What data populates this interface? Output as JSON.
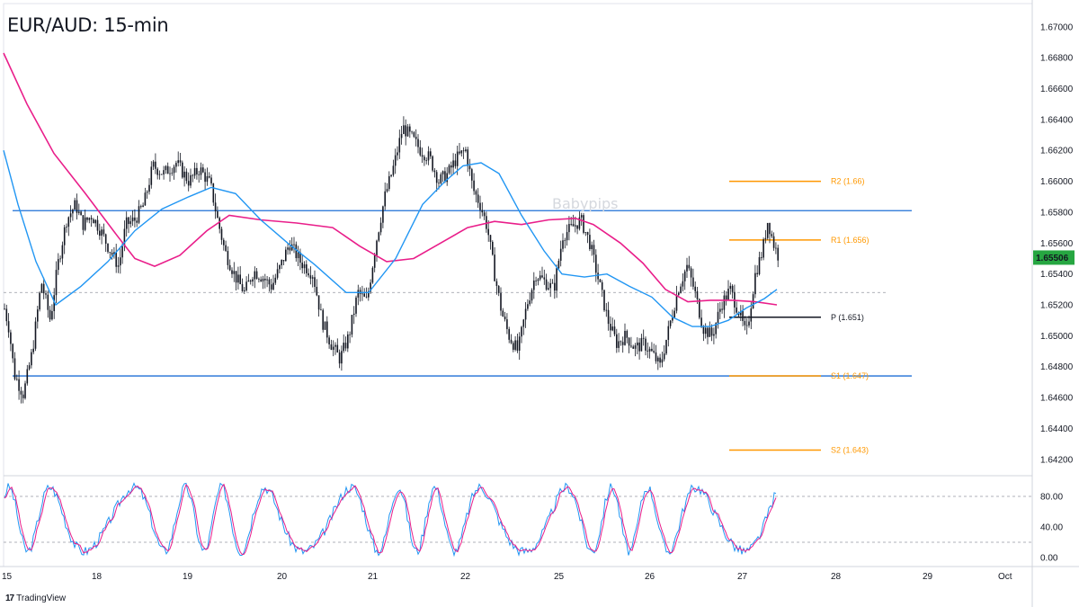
{
  "title": "EUR/AUD: 15-min",
  "watermark": "Babypips",
  "branding": "TradingView",
  "colors": {
    "candle": "#131722",
    "ma_fast": "#2196f3",
    "ma_slow": "#e91e8a",
    "pivot_levels": "#ff9800",
    "pivot_line": "#131722",
    "range_lines": "#1e6fd6",
    "stoch_k": "#2196f3",
    "stoch_d": "#e91e8a",
    "price_badge": "#26a641"
  },
  "current_price": "1.65506",
  "chart_data": {
    "type": "candlestick",
    "x_tick_labels": [
      "15",
      "18",
      "19",
      "20",
      "21",
      "22",
      "25",
      "26",
      "27",
      "28",
      "29",
      "Oct"
    ],
    "y_tick_labels": [
      "1.67000",
      "1.66800",
      "1.66600",
      "1.66400",
      "1.66200",
      "1.66000",
      "1.65800",
      "1.65600",
      "1.65400",
      "1.65200",
      "1.65000",
      "1.64800",
      "1.64600",
      "1.64400",
      "1.64200"
    ],
    "ylim": [
      1.641,
      1.6715
    ],
    "horizontal_lines": [
      1.6581,
      1.6474
    ],
    "dashed_price_line": 1.6528,
    "pivot_levels": [
      {
        "label": "R2 (1.66)",
        "value": 1.66,
        "color": "#ff9800"
      },
      {
        "label": "R1 (1.656)",
        "value": 1.6562,
        "color": "#ff9800"
      },
      {
        "label": "P (1.651)",
        "value": 1.6512,
        "color": "#131722"
      },
      {
        "label": "S1 (1.647)",
        "value": 1.6474,
        "color": "#ff9800"
      },
      {
        "label": "S2 (1.643)",
        "value": 1.6426,
        "color": "#ff9800"
      }
    ],
    "price_path": [
      [
        0,
        1.653
      ],
      [
        10,
        1.6505
      ],
      [
        16,
        1.6475
      ],
      [
        26,
        1.6462
      ],
      [
        36,
        1.649
      ],
      [
        46,
        1.6535
      ],
      [
        56,
        1.651
      ],
      [
        64,
        1.6545
      ],
      [
        74,
        1.6575
      ],
      [
        84,
        1.6585
      ],
      [
        92,
        1.6572
      ],
      [
        102,
        1.6578
      ],
      [
        112,
        1.6568
      ],
      [
        120,
        1.6558
      ],
      [
        132,
        1.6545
      ],
      [
        140,
        1.6572
      ],
      [
        150,
        1.6575
      ],
      [
        160,
        1.6585
      ],
      [
        170,
        1.661
      ],
      [
        182,
        1.6605
      ],
      [
        196,
        1.6612
      ],
      [
        210,
        1.66
      ],
      [
        222,
        1.6608
      ],
      [
        234,
        1.6598
      ],
      [
        242,
        1.6575
      ],
      [
        250,
        1.6555
      ],
      [
        262,
        1.6538
      ],
      [
        272,
        1.6528
      ],
      [
        282,
        1.6542
      ],
      [
        292,
        1.6538
      ],
      [
        302,
        1.6532
      ],
      [
        312,
        1.6545
      ],
      [
        322,
        1.656
      ],
      [
        334,
        1.6548
      ],
      [
        348,
        1.654
      ],
      [
        358,
        1.651
      ],
      [
        368,
        1.6495
      ],
      [
        378,
        1.6485
      ],
      [
        388,
        1.65
      ],
      [
        398,
        1.6528
      ],
      [
        408,
        1.6522
      ],
      [
        418,
        1.656
      ],
      [
        428,
        1.659
      ],
      [
        438,
        1.661
      ],
      [
        448,
        1.6635
      ],
      [
        458,
        1.6628
      ],
      [
        468,
        1.662
      ],
      [
        478,
        1.6615
      ],
      [
        488,
        1.66
      ],
      [
        498,
        1.6605
      ],
      [
        508,
        1.6615
      ],
      [
        518,
        1.662
      ],
      [
        526,
        1.6595
      ],
      [
        534,
        1.6585
      ],
      [
        542,
        1.657
      ],
      [
        550,
        1.654
      ],
      [
        558,
        1.6515
      ],
      [
        566,
        1.65
      ],
      [
        576,
        1.649
      ],
      [
        586,
        1.652
      ],
      [
        596,
        1.654
      ],
      [
        606,
        1.6535
      ],
      [
        616,
        1.653
      ],
      [
        626,
        1.6565
      ],
      [
        636,
        1.657
      ],
      [
        646,
        1.6575
      ],
      [
        656,
        1.656
      ],
      [
        666,
        1.6535
      ],
      [
        676,
        1.651
      ],
      [
        686,
        1.6495
      ],
      [
        696,
        1.65
      ],
      [
        706,
        1.6492
      ],
      [
        716,
        1.6495
      ],
      [
        726,
        1.6488
      ],
      [
        734,
        1.648
      ],
      [
        744,
        1.6505
      ],
      [
        754,
        1.653
      ],
      [
        764,
        1.6545
      ],
      [
        772,
        1.653
      ],
      [
        782,
        1.6505
      ],
      [
        792,
        1.65
      ],
      [
        802,
        1.652
      ],
      [
        812,
        1.653
      ],
      [
        822,
        1.6515
      ],
      [
        830,
        1.65
      ],
      [
        840,
        1.654
      ],
      [
        848,
        1.6555
      ],
      [
        854,
        1.6575
      ],
      [
        860,
        1.656
      ],
      [
        866,
        1.6551
      ]
    ],
    "ma_fast": [
      [
        4,
        1.662
      ],
      [
        20,
        1.6585
      ],
      [
        40,
        1.6548
      ],
      [
        62,
        1.652
      ],
      [
        90,
        1.6532
      ],
      [
        120,
        1.6548
      ],
      [
        150,
        1.6568
      ],
      [
        180,
        1.6582
      ],
      [
        210,
        1.659
      ],
      [
        235,
        1.6596
      ],
      [
        262,
        1.6592
      ],
      [
        290,
        1.6575
      ],
      [
        320,
        1.656
      ],
      [
        350,
        1.6546
      ],
      [
        385,
        1.6528
      ],
      [
        410,
        1.6528
      ],
      [
        440,
        1.655
      ],
      [
        470,
        1.6585
      ],
      [
        495,
        1.66
      ],
      [
        515,
        1.661
      ],
      [
        535,
        1.6612
      ],
      [
        555,
        1.6605
      ],
      [
        580,
        1.6578
      ],
      [
        605,
        1.6555
      ],
      [
        625,
        1.654
      ],
      [
        650,
        1.6538
      ],
      [
        675,
        1.654
      ],
      [
        700,
        1.6532
      ],
      [
        725,
        1.6525
      ],
      [
        748,
        1.6512
      ],
      [
        770,
        1.6506
      ],
      [
        790,
        1.6506
      ],
      [
        810,
        1.651
      ],
      [
        830,
        1.6518
      ],
      [
        850,
        1.6524
      ],
      [
        864,
        1.653
      ]
    ],
    "ma_slow": [
      [
        4,
        1.6683
      ],
      [
        30,
        1.665
      ],
      [
        60,
        1.6618
      ],
      [
        95,
        1.6592
      ],
      [
        130,
        1.6565
      ],
      [
        150,
        1.655
      ],
      [
        172,
        1.6545
      ],
      [
        200,
        1.6552
      ],
      [
        230,
        1.6568
      ],
      [
        255,
        1.6578
      ],
      [
        290,
        1.6575
      ],
      [
        330,
        1.6573
      ],
      [
        370,
        1.657
      ],
      [
        400,
        1.6558
      ],
      [
        430,
        1.6548
      ],
      [
        460,
        1.655
      ],
      [
        490,
        1.656
      ],
      [
        520,
        1.657
      ],
      [
        550,
        1.6574
      ],
      [
        580,
        1.6572
      ],
      [
        610,
        1.6575
      ],
      [
        640,
        1.6576
      ],
      [
        660,
        1.6572
      ],
      [
        690,
        1.656
      ],
      [
        715,
        1.6547
      ],
      [
        740,
        1.653
      ],
      [
        765,
        1.6522
      ],
      [
        790,
        1.6523
      ],
      [
        815,
        1.6523
      ],
      [
        840,
        1.6522
      ],
      [
        864,
        1.652
      ]
    ],
    "oscillator": {
      "y_tick_labels": [
        "80.00",
        "40.00",
        "0.00"
      ],
      "levels": [
        80,
        20
      ],
      "ylim": [
        0,
        100
      ]
    }
  }
}
